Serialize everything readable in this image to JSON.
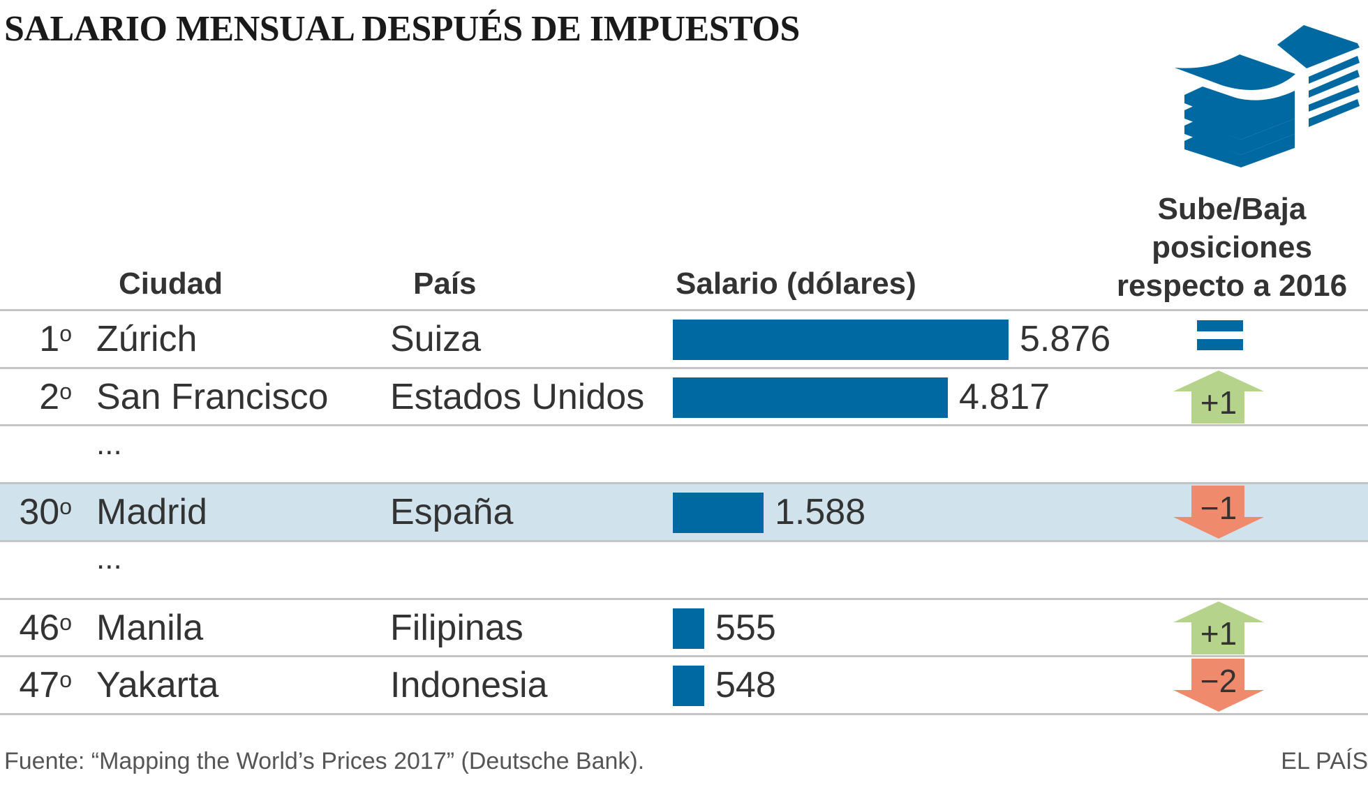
{
  "title": "SALARIO MENSUAL DESPUÉS DE IMPUESTOS",
  "icon": "money-stack-icon",
  "headers": {
    "city": "Ciudad",
    "country": "País",
    "salary": "Salario (dólares)",
    "change_line1": "Sube/Baja",
    "change_line2": "posiciones",
    "change_line3": "respecto a 2016"
  },
  "rows": [
    {
      "rank": "1",
      "city": "Zúrich",
      "country": "Suiza",
      "salary": 5876,
      "salary_label": "5.876",
      "change": "=",
      "change_type": "equal",
      "highlight": false
    },
    {
      "rank": "2",
      "city": "San Francisco",
      "country": "Estados Unidos",
      "salary": 4817,
      "salary_label": "4.817",
      "change": "+1",
      "change_type": "up",
      "highlight": false
    },
    {
      "rank": "30",
      "city": "Madrid",
      "country": "España",
      "salary": 1588,
      "salary_label": "1.588",
      "change": "−1",
      "change_type": "down",
      "highlight": true
    },
    {
      "rank": "46",
      "city": "Manila",
      "country": "Filipinas",
      "salary": 555,
      "salary_label": "555",
      "change": "+1",
      "change_type": "up",
      "highlight": false
    },
    {
      "rank": "47",
      "city": "Yakarta",
      "country": "Indonesia",
      "salary": 548,
      "salary_label": "548",
      "change": "−2",
      "change_type": "down",
      "highlight": false
    }
  ],
  "ordinal_suffix": "o",
  "ellipsis": "...",
  "footer": {
    "source": "Fuente: “Mapping the World’s Prices 2017” (Deutsche Bank).",
    "brand": "EL PAÍS"
  },
  "colors": {
    "bar": "#0069a2",
    "up": "#b5d38a",
    "down": "#ef8a6c",
    "highlight": "#d0e3ec"
  },
  "chart_data": {
    "type": "bar",
    "orientation": "horizontal",
    "title": "SALARIO MENSUAL DESPUÉS DE IMPUESTOS",
    "categories": [
      "Zúrich",
      "San Francisco",
      "Madrid",
      "Manila",
      "Yakarta"
    ],
    "values": [
      5876,
      4817,
      1588,
      555,
      548
    ],
    "ylabel": "Salario (dólares)",
    "grid": false
  }
}
